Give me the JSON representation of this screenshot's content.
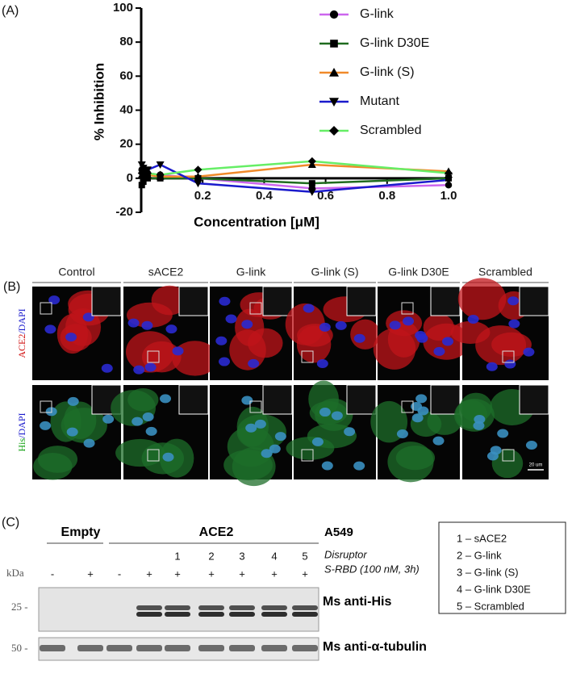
{
  "chart_data": {
    "type": "line",
    "panel_label": "(A)",
    "x_label": "Concentration [μM]",
    "y_label": "% Inhibition",
    "x": [
      0.002,
      0.007,
      0.021,
      0.062,
      0.185,
      0.556,
      1.0
    ],
    "xlim": [
      0,
      1.0
    ],
    "ylim": [
      -20,
      100
    ],
    "xticks": [
      0.2,
      0.4,
      0.6,
      0.8,
      {
        "value": 1.0,
        "label": "1.0"
      }
    ],
    "yticks": [
      -20,
      0,
      20,
      40,
      60,
      80,
      100
    ],
    "series": [
      {
        "name": "G-link",
        "color": "#cc66ee",
        "marker": "circle",
        "values": [
          5,
          4,
          3,
          2,
          0,
          -6,
          -4
        ]
      },
      {
        "name": "G-link D30E",
        "color": "#1f6b1f",
        "marker": "square",
        "values": [
          -4,
          -2,
          0,
          0,
          0,
          -3,
          0
        ]
      },
      {
        "name": "G-link (S)",
        "color": "#f08a2a",
        "marker": "triangle",
        "values": [
          2,
          3,
          2,
          1,
          1,
          8,
          4
        ]
      },
      {
        "name": "Mutant",
        "color": "#1a1acc",
        "marker": "down-triangle",
        "values": [
          8,
          6,
          5,
          8,
          -3,
          -8,
          -1
        ]
      },
      {
        "name": "Scrambled",
        "color": "#66ee66",
        "marker": "diamond",
        "values": [
          3,
          2,
          3,
          2,
          5,
          10,
          3
        ]
      }
    ]
  },
  "panel_b": {
    "label": "(B)",
    "columns": [
      "Control",
      "sACE2",
      "G-link",
      "G-link (S)",
      "G-link D30E",
      "Scrambled"
    ],
    "rows": [
      {
        "stain": "ACE2",
        "counter": "/DAPI"
      },
      {
        "stain": "His",
        "counter": "/DAPI"
      }
    ],
    "scale_bar": "20 um"
  },
  "panel_c": {
    "label": "(C)",
    "groups": [
      "Empty",
      "ACE2"
    ],
    "cell_line": "A549",
    "lane_numbers": [
      "1",
      "2",
      "3",
      "4",
      "5"
    ],
    "disruptor": "Disruptor",
    "treatment": "S-RBD (100 nM, 3h)",
    "kda": "kDa",
    "signs": [
      "-",
      "+",
      "-",
      "+",
      "+",
      "+",
      "+",
      "+",
      "+"
    ],
    "markers": [
      "25 -",
      "50 -"
    ],
    "blots": [
      "Ms anti-His",
      "Ms anti-α-tubulin"
    ],
    "key": [
      "1 – sACE2",
      "2 – G-link",
      "3 – G-link (S)",
      "4 – G-link D30E",
      "5 – Scrambled"
    ]
  }
}
